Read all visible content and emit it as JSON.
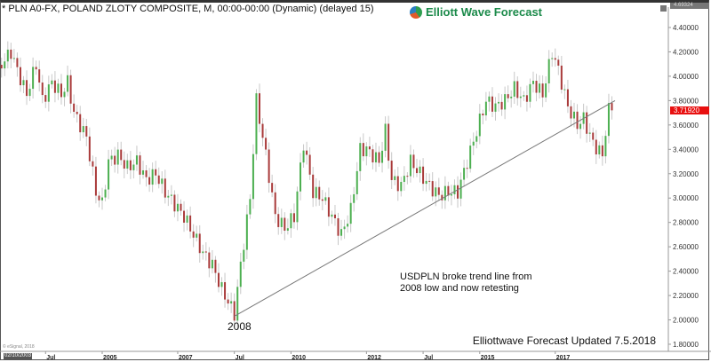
{
  "header": {
    "title": "* PLN A0-FX, POLAND ZLOTY COMPOSITE, M, 00:00-00:00 (Dynamic) (delayed 15)",
    "logo_text": "Elliott Wave Forecast"
  },
  "chart_data": {
    "type": "candlestick",
    "title": "",
    "timeframe": "monthly",
    "ylim": [
      1.8,
      4.5
    ],
    "y_ticks": [
      "4.40000",
      "4.20000",
      "4.00000",
      "3.80000",
      "3.60000",
      "3.40000",
      "3.20000",
      "3.00000",
      "2.80000",
      "2.60000",
      "2.40000",
      "2.20000",
      "2.00000",
      "1.80000"
    ],
    "x_ticks": [
      {
        "label": "Jul",
        "date": "2003-07"
      },
      {
        "label": "2005",
        "date": "2005-01"
      },
      {
        "label": "2007",
        "date": "2007-01"
      },
      {
        "label": "Jul",
        "date": "2008-07"
      },
      {
        "label": "2010",
        "date": "2010-01"
      },
      {
        "label": "2012",
        "date": "2012-01"
      },
      {
        "label": "Jul",
        "date": "2013-07"
      },
      {
        "label": "2015",
        "date": "2015-01"
      },
      {
        "label": "2017",
        "date": "2017-01"
      }
    ],
    "approx_closes": [
      [
        "2002-05",
        4.1
      ],
      [
        "2002-08",
        4.2
      ],
      [
        "2002-10",
        4.05
      ],
      [
        "2003-01",
        3.85
      ],
      [
        "2003-04",
        4.1
      ],
      [
        "2003-06",
        3.8
      ],
      [
        "2003-09",
        3.95
      ],
      [
        "2003-12",
        3.85
      ],
      [
        "2004-02",
        3.95
      ],
      [
        "2004-04",
        3.7
      ],
      [
        "2004-08",
        3.5
      ],
      [
        "2004-11",
        3.05
      ],
      [
        "2005-01",
        2.95
      ],
      [
        "2005-03",
        3.3
      ],
      [
        "2005-06",
        3.35
      ],
      [
        "2005-09",
        3.25
      ],
      [
        "2005-12",
        3.3
      ],
      [
        "2006-03",
        3.15
      ],
      [
        "2006-06",
        3.2
      ],
      [
        "2006-09",
        3.05
      ],
      [
        "2006-12",
        2.95
      ],
      [
        "2007-03",
        2.85
      ],
      [
        "2007-06",
        2.7
      ],
      [
        "2007-09",
        2.55
      ],
      [
        "2007-12",
        2.45
      ],
      [
        "2008-03",
        2.25
      ],
      [
        "2008-07",
        2.05
      ],
      [
        "2008-09",
        2.45
      ],
      [
        "2008-12",
        3.0
      ],
      [
        "2009-02",
        3.8
      ],
      [
        "2009-05",
        3.35
      ],
      [
        "2009-08",
        2.85
      ],
      [
        "2009-11",
        2.75
      ],
      [
        "2010-02",
        2.85
      ],
      [
        "2010-05",
        3.45
      ],
      [
        "2010-08",
        3.05
      ],
      [
        "2010-11",
        3.0
      ],
      [
        "2011-02",
        2.85
      ],
      [
        "2011-05",
        2.7
      ],
      [
        "2011-08",
        2.9
      ],
      [
        "2011-11",
        3.4
      ],
      [
        "2012-01",
        3.4
      ],
      [
        "2012-05",
        3.3
      ],
      [
        "2012-07",
        3.55
      ],
      [
        "2012-09",
        3.15
      ],
      [
        "2012-12",
        3.1
      ],
      [
        "2013-03",
        3.3
      ],
      [
        "2013-06",
        3.2
      ],
      [
        "2013-09",
        3.1
      ],
      [
        "2013-12",
        3.02
      ],
      [
        "2014-03",
        3.05
      ],
      [
        "2014-06",
        3.05
      ],
      [
        "2014-09",
        3.3
      ],
      [
        "2014-12",
        3.55
      ],
      [
        "2015-03",
        3.8
      ],
      [
        "2015-06",
        3.75
      ],
      [
        "2015-09",
        3.8
      ],
      [
        "2015-12",
        3.9
      ],
      [
        "2016-03",
        3.8
      ],
      [
        "2016-06",
        3.95
      ],
      [
        "2016-09",
        3.85
      ],
      [
        "2016-12",
        4.2
      ],
      [
        "2017-02",
        4.05
      ],
      [
        "2017-05",
        3.75
      ],
      [
        "2017-08",
        3.6
      ],
      [
        "2017-10",
        3.65
      ],
      [
        "2018-01",
        3.45
      ],
      [
        "2018-04",
        3.35
      ],
      [
        "2018-05",
        3.55
      ],
      [
        "2018-06",
        3.72
      ],
      [
        "2018-07",
        3.72
      ]
    ],
    "trendline": {
      "from": [
        "2008-07",
        2.03
      ],
      "to": [
        "2018-08",
        3.8
      ]
    },
    "last_price": "3.71920",
    "top_price": "4.69324",
    "colors": {
      "up": "#4caf50",
      "down": "#a93a3a",
      "wick": "#c8c8c8",
      "trendline": "#777777",
      "last_price": "#e81010"
    },
    "annotations": {
      "note_line1": "USDPLN broke trend line from",
      "note_line2": "2008 low and now retesting",
      "low_label": "2008",
      "updated": "Elliottwave Forecast Updated 7.5.2018"
    }
  },
  "footer": {
    "copyright": "© eSignal, 2018",
    "date_box": "02/10/2003"
  }
}
